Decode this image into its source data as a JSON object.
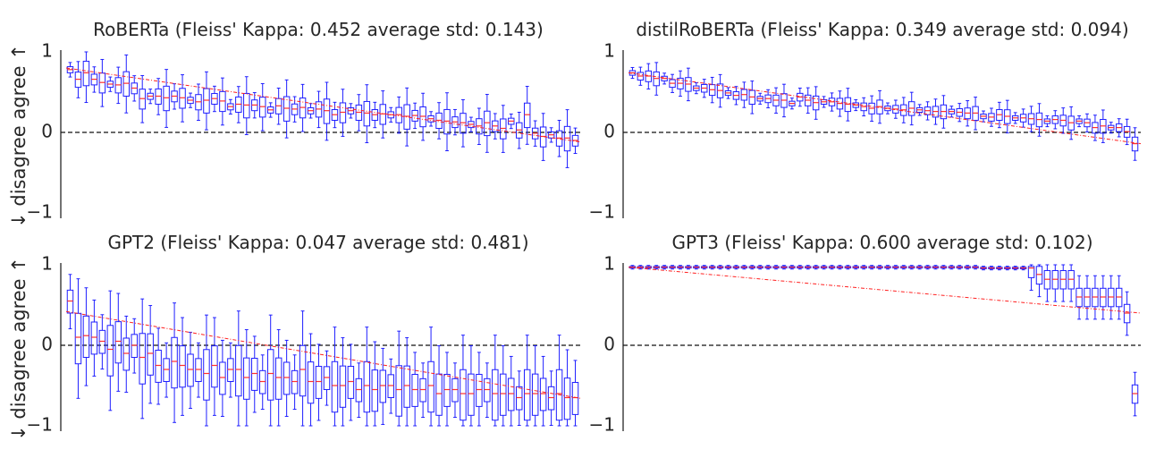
{
  "figure": {
    "ylabel": "↓ disagree agree ↑"
  },
  "style": {
    "box_color": "#1f1fff",
    "median_color": "#ff3030",
    "trend_color": "#ff2020",
    "axis_color": "#262626",
    "zero_line_color": "#111111"
  },
  "chart_data": [
    {
      "type": "box",
      "title": "RoBERTa (Fleiss' Kappa: 0.452 average std: 0.143)",
      "ylim": [
        -1,
        1
      ],
      "yticks": [
        1,
        0,
        -1
      ],
      "ytick_labels": [
        "1",
        "0",
        "−1"
      ],
      "reference_line": 0,
      "trend": [
        0.8,
        -0.12
      ],
      "grid": false,
      "medians": [
        0.78,
        0.66,
        0.74,
        0.66,
        0.62,
        0.6,
        0.59,
        0.61,
        0.55,
        0.42,
        0.45,
        0.45,
        0.43,
        0.45,
        0.43,
        0.4,
        0.38,
        0.4,
        0.42,
        0.39,
        0.32,
        0.35,
        0.34,
        0.34,
        0.32,
        0.28,
        0.33,
        0.3,
        0.29,
        0.31,
        0.27,
        0.29,
        0.27,
        0.22,
        0.25,
        0.27,
        0.25,
        0.24,
        0.22,
        0.23,
        0.22,
        0.22,
        0.2,
        0.21,
        0.2,
        0.17,
        0.15,
        0.14,
        0.13,
        0.12,
        0.1,
        0.08,
        0.12,
        0.08,
        0.05,
        0.14,
        0.03,
        0.22,
        -0.01,
        -0.05,
        -0.03,
        -0.07,
        -0.07,
        -0.1
      ]
    },
    {
      "type": "box",
      "title": "distilRoBERTa (Fleiss' Kappa: 0.349 average std: 0.094)",
      "ylim": [
        -1,
        1
      ],
      "yticks": [
        1,
        0,
        -1
      ],
      "ytick_labels": [
        "1",
        "0",
        "−1"
      ],
      "reference_line": 0,
      "trend": [
        0.74,
        -0.14
      ],
      "grid": false,
      "medians": [
        0.74,
        0.7,
        0.7,
        0.67,
        0.67,
        0.61,
        0.61,
        0.6,
        0.55,
        0.55,
        0.53,
        0.52,
        0.49,
        0.46,
        0.47,
        0.44,
        0.42,
        0.42,
        0.4,
        0.4,
        0.36,
        0.44,
        0.4,
        0.37,
        0.38,
        0.38,
        0.36,
        0.35,
        0.34,
        0.32,
        0.3,
        0.32,
        0.3,
        0.29,
        0.28,
        0.3,
        0.28,
        0.27,
        0.26,
        0.26,
        0.26,
        0.25,
        0.24,
        0.24,
        0.2,
        0.19,
        0.22,
        0.2,
        0.18,
        0.18,
        0.17,
        0.16,
        0.14,
        0.16,
        0.15,
        0.12,
        0.14,
        0.12,
        0.06,
        0.08,
        0.06,
        0.06,
        0.01,
        -0.14
      ]
    },
    {
      "type": "box",
      "title": "GPT2 (Fleiss' Kappa: 0.047 average std: 0.481)",
      "ylim": [
        -1,
        1
      ],
      "yticks": [
        1,
        0,
        -1
      ],
      "ytick_labels": [
        "1",
        "0",
        "−1"
      ],
      "reference_line": 0,
      "trend": [
        0.42,
        -0.66
      ],
      "grid": false,
      "medians": [
        0.55,
        0.1,
        0.12,
        0.1,
        0.05,
        -0.05,
        0.05,
        -0.1,
        0.0,
        -0.15,
        -0.1,
        -0.25,
        -0.3,
        -0.2,
        -0.25,
        -0.3,
        -0.3,
        -0.35,
        -0.25,
        -0.4,
        -0.3,
        -0.3,
        -0.4,
        -0.35,
        -0.45,
        -0.35,
        -0.4,
        -0.4,
        -0.45,
        -0.3,
        -0.45,
        -0.45,
        -0.4,
        -0.5,
        -0.5,
        -0.45,
        -0.55,
        -0.5,
        -0.55,
        -0.5,
        -0.5,
        -0.55,
        -0.5,
        -0.55,
        -0.55,
        -0.5,
        -0.6,
        -0.55,
        -0.55,
        -0.6,
        -0.6,
        -0.55,
        -0.55,
        -0.6,
        -0.6,
        -0.6,
        -0.65,
        -0.6,
        -0.6,
        -0.6,
        -0.65,
        -0.6,
        -0.65,
        -0.65
      ]
    },
    {
      "type": "box",
      "title": "GPT3 (Fleiss' Kappa: 0.600 average std: 0.102)",
      "ylim": [
        -1,
        1
      ],
      "yticks": [
        1,
        0,
        -1
      ],
      "ytick_labels": [
        "1",
        "0",
        "−1"
      ],
      "reference_line": 0,
      "trend": [
        0.97,
        0.4
      ],
      "grid": false,
      "medians": [
        0.97,
        0.97,
        0.97,
        0.97,
        0.97,
        0.97,
        0.97,
        0.97,
        0.97,
        0.97,
        0.97,
        0.97,
        0.97,
        0.97,
        0.97,
        0.97,
        0.97,
        0.97,
        0.97,
        0.97,
        0.97,
        0.97,
        0.97,
        0.97,
        0.97,
        0.97,
        0.97,
        0.97,
        0.97,
        0.97,
        0.97,
        0.97,
        0.97,
        0.97,
        0.97,
        0.97,
        0.97,
        0.97,
        0.97,
        0.97,
        0.97,
        0.97,
        0.97,
        0.97,
        0.96,
        0.96,
        0.96,
        0.96,
        0.96,
        0.96,
        0.96,
        0.88,
        0.82,
        0.82,
        0.82,
        0.82,
        0.6,
        0.6,
        0.6,
        0.6,
        0.6,
        0.6,
        0.4,
        -0.6
      ]
    }
  ]
}
